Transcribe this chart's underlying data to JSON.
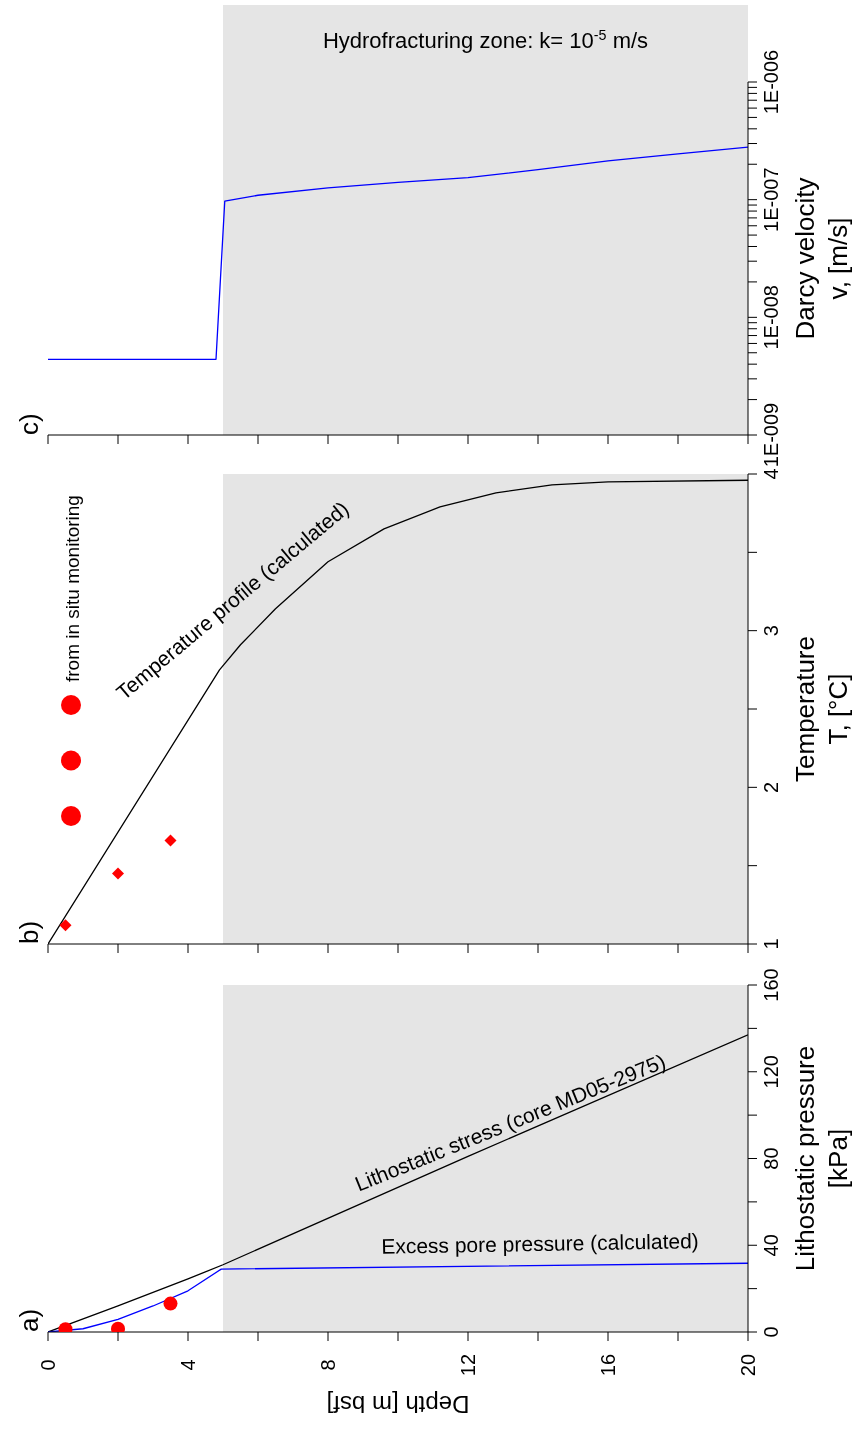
{
  "chart_data": [
    {
      "type": "line",
      "ylabel": "Darcy velocity\nv, [m/s]",
      "log": "y",
      "xlim": [
        0,
        20
      ],
      "tick_labels": "y",
      "annotations": [
        "c)"
      ],
      "xticks": [
        {
          "value": 0,
          "label": null
        },
        {
          "value": 2,
          "label": null
        },
        {
          "value": 4,
          "label": null
        },
        {
          "value": 6,
          "label": null
        },
        {
          "value": 8,
          "label": null
        },
        {
          "value": 10,
          "label": null
        },
        {
          "value": 12,
          "label": null
        },
        {
          "value": 14,
          "label": null
        },
        {
          "value": 16,
          "label": null
        },
        {
          "value": 18,
          "label": null
        },
        {
          "value": 20,
          "label": null
        }
      ],
      "ylim": [
        1e-09,
        1e-06
      ],
      "yticks": [
        {
          "value": 1e-09,
          "label": "1E-009"
        },
        {
          "value": 2e-09,
          "label": null
        },
        {
          "value": 3e-09,
          "label": null
        },
        {
          "value": 4e-09,
          "label": null
        },
        {
          "value": 5e-09,
          "label": null
        },
        {
          "value": 6e-09,
          "label": null
        },
        {
          "value": 7e-09,
          "label": null
        },
        {
          "value": 8e-09,
          "label": null
        },
        {
          "value": 9e-09,
          "label": null
        },
        {
          "value": 1e-08,
          "label": "1E-008"
        },
        {
          "value": 2e-08,
          "label": null
        },
        {
          "value": 3e-08,
          "label": null
        },
        {
          "value": 4e-08,
          "label": null
        },
        {
          "value": 5e-08,
          "label": null
        },
        {
          "value": 6e-08,
          "label": null
        },
        {
          "value": 7e-08,
          "label": null
        },
        {
          "value": 8e-08,
          "label": null
        },
        {
          "value": 9e-08,
          "label": null
        },
        {
          "value": 1e-07,
          "label": "1E-007"
        },
        {
          "value": 2e-07,
          "label": null
        },
        {
          "value": 3e-07,
          "label": null
        },
        {
          "value": 4e-07,
          "label": null
        },
        {
          "value": 5e-07,
          "label": null
        },
        {
          "value": 6e-07,
          "label": null
        },
        {
          "value": 7e-07,
          "label": null
        },
        {
          "value": 8e-07,
          "label": null
        },
        {
          "value": 9e-07,
          "label": null
        },
        {
          "value": 1e-06,
          "label": "1E-006"
        }
      ],
      "bands": [
        {
          "axis": "x",
          "from": 5,
          "to": 20,
          "label": "Hydrofracturing zone: k= 10$^{-5}$ m/s",
          "color": "#e5e5e5"
        }
      ],
      "series": [
        {
          "color": "#0000ff",
          "x": [
            0,
            4.8,
            5.05,
            6,
            8,
            10,
            12,
            14,
            16,
            18,
            20
          ],
          "values": [
            4.4e-09,
            4.4e-09,
            9.7e-08,
            1.09e-07,
            1.26e-07,
            1.4e-07,
            1.54e-07,
            1.8e-07,
            2.14e-07,
            2.45e-07,
            2.8e-07
          ]
        }
      ]
    },
    {
      "type": "line",
      "ylabel": "Temperature\nT, [°C]",
      "marker": "none",
      "xlim": [
        0,
        20
      ],
      "tick_labels": "y",
      "annotations": [
        "b)",
        "from in situ monitoring"
      ],
      "xticks": [
        {
          "value": 0,
          "label": null
        },
        {
          "value": 2,
          "label": null
        },
        {
          "value": 4,
          "label": null
        },
        {
          "value": 6,
          "label": null
        },
        {
          "value": 8,
          "label": null
        },
        {
          "value": 10,
          "label": null
        },
        {
          "value": 12,
          "label": null
        },
        {
          "value": 14,
          "label": null
        },
        {
          "value": 16,
          "label": null
        },
        {
          "value": 18,
          "label": null
        },
        {
          "value": 20,
          "label": null
        }
      ],
      "ylim": [
        1,
        4
      ],
      "yticks": [
        1,
        {
          "value": 1.5,
          "label": null
        },
        2,
        {
          "value": 2.5,
          "label": null
        },
        3,
        {
          "value": 3.5,
          "label": null
        },
        4
      ],
      "bands": [
        {
          "axis": "x",
          "from": 5,
          "to": 20,
          "color": "#e5e5e5"
        }
      ],
      "series": [
        {
          "name": "Temperature profile (calculated)",
          "color": "#000000",
          "x": [
            0,
            4.9,
            5.5,
            6.5,
            8,
            9.6,
            11.2,
            12.8,
            14.4,
            16,
            20
          ],
          "values": [
            1,
            2.75,
            2.91,
            3.14,
            3.44,
            3.65,
            3.79,
            3.88,
            3.93,
            3.95,
            3.96
          ]
        },
        {
          "type": "scatter",
          "marker": "diamond",
          "color": "#ff0000",
          "x": [
            0.5,
            2,
            3.5
          ],
          "values": [
            1.12,
            1.45,
            1.66
          ]
        }
      ]
    },
    {
      "type": "line",
      "xlabel": "Depth [m bsf]",
      "ylabel": "Lithostatic pressure\n[kPa]",
      "marker": "none",
      "xlim": [
        0,
        20
      ],
      "annotations": [
        "a)"
      ],
      "xticks": [
        0,
        {
          "value": 2,
          "label": null
        },
        4,
        {
          "value": 6,
          "label": null
        },
        8,
        {
          "value": 10,
          "label": null
        },
        12,
        {
          "value": 14,
          "label": null
        },
        16,
        {
          "value": 18,
          "label": null
        },
        20
      ],
      "ylim": [
        0,
        160
      ],
      "yticks": [
        0,
        {
          "value": 20,
          "label": null
        },
        40,
        {
          "value": 60,
          "label": null
        },
        80,
        {
          "value": 100,
          "label": null
        },
        120,
        {
          "value": 140,
          "label": null
        },
        160
      ],
      "bands": [
        {
          "axis": "x",
          "from": 5,
          "to": 20,
          "color": "#e5e5e5"
        }
      ],
      "series": [
        {
          "name": "Lithostatic stress (core MD05-2975)",
          "color": "#000000",
          "x": [
            0,
            2,
            4,
            5,
            12,
            20
          ],
          "values": [
            0,
            12,
            24.5,
            31,
            81,
            137
          ]
        },
        {
          "name": "Excess pore pressure (calculated)",
          "color": "#0000ff",
          "x": [
            0,
            1,
            2,
            3,
            4,
            4.95,
            20
          ],
          "values": [
            0,
            1.5,
            5.8,
            12,
            19,
            29,
            31.7
          ]
        },
        {
          "type": "scatter",
          "marker": "circle",
          "color": "#ff0000",
          "x": [
            0.5,
            2,
            3.5
          ],
          "values": [
            1.3,
            1.5,
            13.1
          ]
        }
      ]
    }
  ]
}
